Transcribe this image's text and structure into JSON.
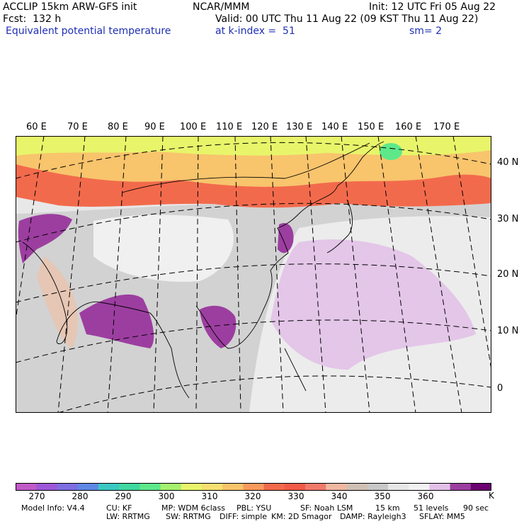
{
  "header": {
    "line1_left": "ACCLIP 15km ARW-GFS init",
    "line1_center": "NCAR/MMM",
    "line1_right": "Init: 12 UTC Fri 05 Aug 22",
    "line2_left": "Fcst:  132 h",
    "line2_right": "Valid: 00 UTC Thu 11 Aug 22 (09 KST Thu 11 Aug 22)",
    "line3_left": "Equivalent potential temperature",
    "line3_center": "at k-index =  51",
    "line3_right": "sm= 2"
  },
  "map": {
    "lon_labels": [
      "60 E",
      "70 E",
      "80 E",
      "90 E",
      "100 E",
      "110 E",
      "120 E",
      "130 E",
      "140 E",
      "150 E",
      "160 E",
      "170 E"
    ],
    "lat_labels": [
      "40 N",
      "30 N",
      "20 N",
      "10 N",
      "0"
    ]
  },
  "colorbar": {
    "colors": [
      "#c15ac8",
      "#9c58d8",
      "#7d6ee2",
      "#5f88e6",
      "#3bc8c2",
      "#40d8a0",
      "#5ee88a",
      "#a6f070",
      "#e8f56a",
      "#f6e070",
      "#f8c46c",
      "#f89a5c",
      "#f26a4c",
      "#f25a48",
      "#f07a6a",
      "#f0b8a0",
      "#d0c0b4",
      "#c8c8c8",
      "#e6e6e6",
      "#f2f2f2",
      "#e2c0e8",
      "#9c3ea0",
      "#6c0070"
    ],
    "tick_labels": [
      "270",
      "280",
      "290",
      "300",
      "310",
      "320",
      "330",
      "340",
      "350",
      "360"
    ],
    "unit": "K"
  },
  "footer": {
    "line1": [
      "Model Info: V4.4",
      "CU: KF",
      "MP: WDM 6class",
      "PBL: YSU",
      "SF: Noah LSM",
      "15 km",
      "51 levels",
      "90 sec"
    ],
    "line2": [
      "LW: RRTMG",
      "SW: RRTMG",
      "DIFF: simple",
      "KM: 2D Smagor",
      "DAMP: Rayleigh3",
      "SFLAY: MM5"
    ]
  }
}
